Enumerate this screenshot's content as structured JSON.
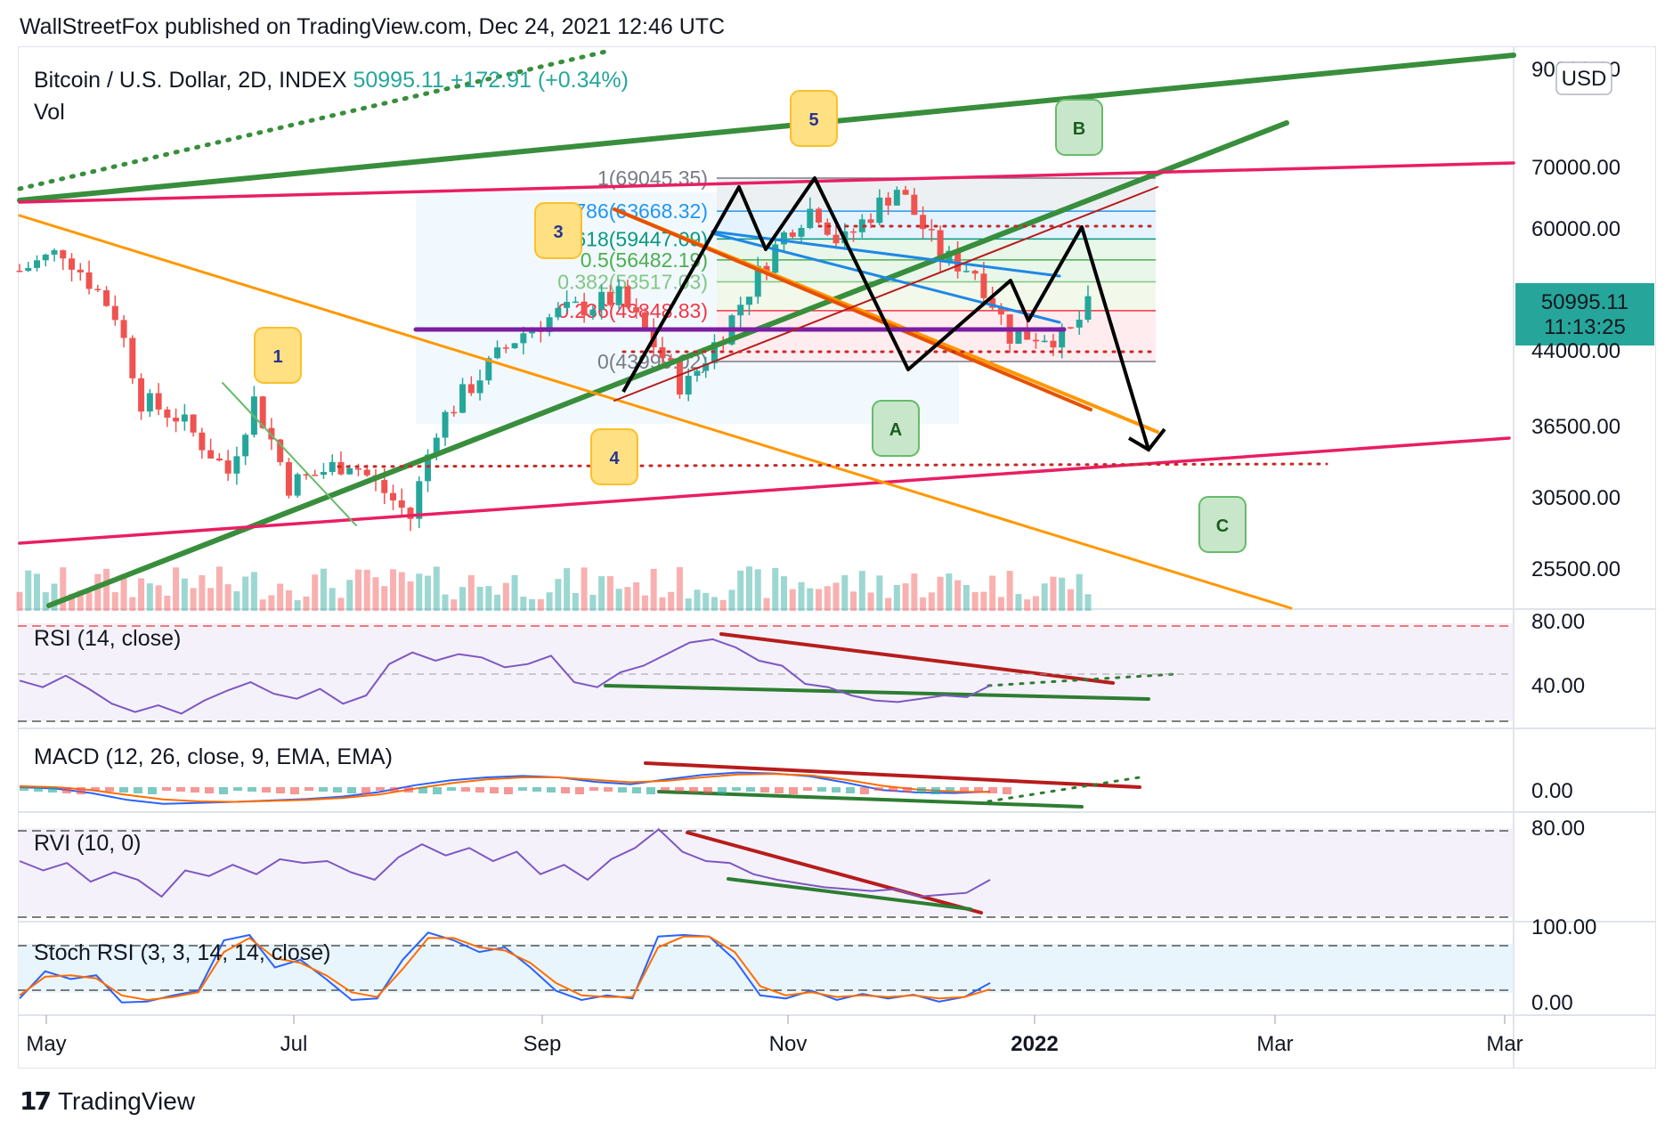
{
  "header": {
    "text": "WallStreetFox published on TradingView.com, Dec 24, 2021 12:46 UTC"
  },
  "footer": {
    "brand": "TradingView",
    "logo_icon": "tradingview-logo-icon"
  },
  "chart_data": [
    {
      "type": "candlestick",
      "panel": "price",
      "title": "Bitcoin / U.S. Dollar, 2D, INDEX",
      "last_price": "50995.11",
      "change": "+172.91 (+0.34%)",
      "sub_label": "Vol",
      "currency": "USD",
      "countdown": "11:13:25",
      "price_ticks": [
        "90000.00",
        "70000.00",
        "60000.00",
        "50995.11",
        "44000.00",
        "36500.00",
        "30500.00",
        "25500.00"
      ],
      "time_ticks": [
        "May",
        "Jul",
        "Sep",
        "Nov",
        "2022",
        "Mar",
        "Mar"
      ],
      "scale": "log",
      "fib_retracement": [
        {
          "level": "1",
          "price": "69045.35",
          "color": "#787b86"
        },
        {
          "level": "0.786",
          "price": "63668.32",
          "color": "#2196f3"
        },
        {
          "level": "0.618",
          "price": "59447.09",
          "color": "#089981"
        },
        {
          "level": "0.5",
          "price": "56482.19",
          "color": "#4caf50"
        },
        {
          "level": "0.382",
          "price": "53517.03",
          "color": "#81c784"
        },
        {
          "level": "0.236",
          "price": "49848.83",
          "color": "#f23645"
        },
        {
          "level": "0",
          "price": "43999.02",
          "color": "#787b86"
        }
      ],
      "wave_labels": [
        "1",
        "3",
        "4",
        "5",
        "A",
        "B",
        "C"
      ],
      "close_series_approx": [
        {
          "x": "2021-04-21",
          "close": 55000
        },
        {
          "x": "2021-05-01",
          "close": 57800
        },
        {
          "x": "2021-05-13",
          "close": 49500
        },
        {
          "x": "2021-05-19",
          "close": 40000
        },
        {
          "x": "2021-05-27",
          "close": 38500
        },
        {
          "x": "2021-06-08",
          "close": 33500
        },
        {
          "x": "2021-06-14",
          "close": 40000
        },
        {
          "x": "2021-06-22",
          "close": 32500
        },
        {
          "x": "2021-07-06",
          "close": 34500
        },
        {
          "x": "2021-07-20",
          "close": 30000
        },
        {
          "x": "2021-07-26",
          "close": 37500
        },
        {
          "x": "2021-08-14",
          "close": 47000
        },
        {
          "x": "2021-08-23",
          "close": 49500
        },
        {
          "x": "2021-09-06",
          "close": 51500
        },
        {
          "x": "2021-09-21",
          "close": 41000
        },
        {
          "x": "2021-10-01",
          "close": 48000
        },
        {
          "x": "2021-10-15",
          "close": 61000
        },
        {
          "x": "2021-10-21",
          "close": 64500
        },
        {
          "x": "2021-10-27",
          "close": 58500
        },
        {
          "x": "2021-11-09",
          "close": 67500
        },
        {
          "x": "2021-11-19",
          "close": 57000
        },
        {
          "x": "2021-11-27",
          "close": 55000
        },
        {
          "x": "2021-12-05",
          "close": 47000
        },
        {
          "x": "2021-12-14",
          "close": 47000
        },
        {
          "x": "2021-12-18",
          "close": 46500
        },
        {
          "x": "2021-12-24",
          "close": 50995
        }
      ],
      "colors": {
        "up": "#26a69a",
        "down": "#ef5350",
        "trend_green": "#388e3c",
        "trend_pink": "#e91e63",
        "trend_orange": "#ff9800",
        "fib_box": "#d1d4dc"
      }
    },
    {
      "type": "line",
      "panel": "indicator",
      "label": "RSI (14, close)",
      "ticks": [
        "80.00",
        "40.00"
      ],
      "ylim": [
        0,
        100
      ],
      "values": [
        50,
        46,
        53,
        45,
        36,
        31,
        35,
        30,
        38,
        44,
        49,
        42,
        39,
        45,
        36,
        41,
        60,
        67,
        62,
        66,
        64,
        58,
        60,
        65,
        49,
        46,
        55,
        59,
        66,
        73,
        75,
        70,
        62,
        59,
        48,
        46,
        41,
        38,
        37,
        39,
        41,
        40,
        47
      ]
    },
    {
      "type": "line",
      "panel": "indicator",
      "label": "MACD (12, 26, close, 9, EMA, EMA)",
      "ticks": [
        "0.00"
      ],
      "series_macd": [
        0.0,
        -0.3,
        -1.2,
        -2.6,
        -3.4,
        -3.2,
        -3.0,
        -2.7,
        -2.4,
        -1.9,
        -1.0,
        0.4,
        1.4,
        2.0,
        2.3,
        2.0,
        1.1,
        0.6,
        1.6,
        2.5,
        3.0,
        2.8,
        2.2,
        0.9,
        -0.6,
        -1.1,
        -1.2,
        -0.9
      ],
      "series_signal": [
        0.2,
        0.0,
        -0.6,
        -1.6,
        -2.5,
        -2.9,
        -3.0,
        -2.8,
        -2.6,
        -2.2,
        -1.5,
        -0.3,
        0.8,
        1.6,
        2.0,
        2.0,
        1.5,
        1.0,
        1.3,
        2.0,
        2.6,
        2.7,
        2.4,
        1.5,
        0.3,
        -0.5,
        -0.9,
        -1.0
      ]
    },
    {
      "type": "line",
      "panel": "indicator",
      "label": "RVI (10, 0)",
      "ticks": [
        "80.00"
      ],
      "ylim": [
        0,
        100
      ],
      "values": [
        60,
        50,
        58,
        38,
        48,
        40,
        22,
        50,
        44,
        56,
        46,
        62,
        58,
        60,
        48,
        40,
        64,
        78,
        66,
        74,
        60,
        70,
        46,
        56,
        40,
        62,
        74,
        94,
        70,
        60,
        58,
        46,
        40,
        36,
        32,
        30,
        28,
        30,
        22,
        24,
        26,
        40
      ]
    },
    {
      "type": "line",
      "panel": "indicator",
      "label": "Stoch RSI (3, 3, 14, 14, close)",
      "ticks": [
        "100.00",
        "0.00"
      ],
      "ylim": [
        0,
        100
      ],
      "series_k": [
        10,
        45,
        35,
        40,
        5,
        6,
        14,
        20,
        85,
        92,
        50,
        60,
        35,
        8,
        10,
        60,
        95,
        85,
        70,
        76,
        50,
        20,
        8,
        14,
        10,
        90,
        92,
        90,
        60,
        14,
        10,
        20,
        8,
        16,
        10,
        15,
        6,
        12,
        30
      ],
      "series_d": [
        14,
        38,
        40,
        36,
        14,
        8,
        12,
        18,
        70,
        88,
        62,
        56,
        40,
        18,
        12,
        48,
        88,
        88,
        76,
        72,
        56,
        30,
        14,
        12,
        12,
        76,
        90,
        90,
        70,
        26,
        14,
        18,
        12,
        14,
        12,
        14,
        10,
        12,
        22
      ]
    }
  ]
}
